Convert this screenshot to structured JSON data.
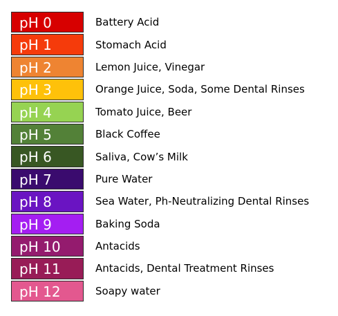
{
  "ph_scale": [
    {
      "label": "pH 0",
      "color": "#d70000",
      "description": "Battery Acid"
    },
    {
      "label": "pH 1",
      "color": "#f53b0b",
      "description": "Stomach Acid"
    },
    {
      "label": "pH 2",
      "color": "#ee8432",
      "description": "Lemon Juice, Vinegar"
    },
    {
      "label": "pH 3",
      "color": "#fec10a",
      "description": "Orange Juice, Soda, Some Dental Rinses"
    },
    {
      "label": "pH 4",
      "color": "#96d352",
      "description": "Tomato Juice, Beer"
    },
    {
      "label": "pH 5",
      "color": "#538138",
      "description": "Black Coffee"
    },
    {
      "label": "pH 6",
      "color": "#385723",
      "description": "Saliva, Cow’s Milk"
    },
    {
      "label": "pH 7",
      "color": "#3a0b6e",
      "description": "Pure Water"
    },
    {
      "label": "pH 8",
      "color": "#6a14c2",
      "description": "Sea Water, Ph-Neutralizing Dental Rinses"
    },
    {
      "label": "pH 9",
      "color": "#a41ef2",
      "description": "Baking Soda"
    },
    {
      "label": "pH 10",
      "color": "#941b6e",
      "description": "Antacids"
    },
    {
      "label": "pH 11",
      "color": "#981c57",
      "description": "Antacids, Dental Treatment Rinses"
    },
    {
      "label": "pH 12",
      "color": "#e3588f",
      "description": "Soapy water"
    }
  ]
}
